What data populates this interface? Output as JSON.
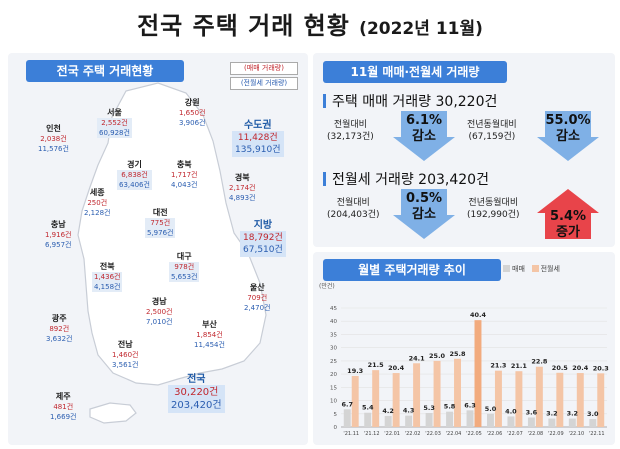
{
  "title": {
    "main": "전국 주택 거래 현황",
    "sub": "(2022년 11월)"
  },
  "left_panel": {
    "header": "전국 주택 거래현황",
    "legend_sale": "(매매 거래량)",
    "legend_rent": "(전월세 거래량)"
  },
  "regions": {
    "incheon": {
      "name": "인천",
      "sale": "2,038건",
      "rent": "11,576건"
    },
    "seoul": {
      "name": "서울",
      "sale": "2,552건",
      "rent": "60,928건"
    },
    "gangwon": {
      "name": "강원",
      "sale": "1,650건",
      "rent": "3,906건"
    },
    "gyeonggi": {
      "name": "경기",
      "sale": "6,838건",
      "rent": "63,406건"
    },
    "chungbuk": {
      "name": "충북",
      "sale": "1,717건",
      "rent": "4,043건"
    },
    "sejong": {
      "name": "세종",
      "sale": "250건",
      "rent": "2,128건"
    },
    "gyeongbuk": {
      "name": "경북",
      "sale": "2,174건",
      "rent": "4,893건"
    },
    "daejeon": {
      "name": "대전",
      "sale": "775건",
      "rent": "5,976건"
    },
    "chungnam": {
      "name": "충남",
      "sale": "1,916건",
      "rent": "6,957건"
    },
    "daegu": {
      "name": "대구",
      "sale": "978건",
      "rent": "5,653건"
    },
    "jeonbuk": {
      "name": "전북",
      "sale": "1,436건",
      "rent": "4,158건"
    },
    "ulsan": {
      "name": "울산",
      "sale": "709건",
      "rent": "2,470건"
    },
    "gyeongnam": {
      "name": "경남",
      "sale": "2,500건",
      "rent": "7,010건"
    },
    "gwangju": {
      "name": "광주",
      "sale": "892건",
      "rent": "3,632건"
    },
    "busan": {
      "name": "부산",
      "sale": "1,854건",
      "rent": "11,454건"
    },
    "jeonnam": {
      "name": "전남",
      "sale": "1,460건",
      "rent": "3,561건"
    },
    "jeju": {
      "name": "제주",
      "sale": "481건",
      "rent": "1,669건"
    }
  },
  "big_regions": {
    "capital": {
      "name": "수도권",
      "sale": "11,428건",
      "rent": "135,910건"
    },
    "local": {
      "name": "지방",
      "sale": "18,792건",
      "rent": "67,510건"
    },
    "national": {
      "name": "전국",
      "sale": "30,220건",
      "rent": "203,420건"
    }
  },
  "summary": {
    "header": "11월 매매·전월세 거래량",
    "sale_title": "주택 매매 거래량 30,220건",
    "sale_mom_label": "전월대비",
    "sale_mom_base": "(32,173건)",
    "sale_mom_value": "6.1%",
    "sale_mom_dir": "감소",
    "sale_yoy_label": "전년동월대비",
    "sale_yoy_base": "(67,159건)",
    "sale_yoy_value": "55.0%",
    "sale_yoy_dir": "감소",
    "rent_title": "전월세 거래량 203,420건",
    "rent_mom_label": "전월대비",
    "rent_mom_base": "(204,403건)",
    "rent_mom_value": "0.5%",
    "rent_mom_dir": "감소",
    "rent_yoy_label": "전년동월대비",
    "rent_yoy_base": "(192,990건)",
    "rent_yoy_value": "5.4%",
    "rent_yoy_dir": "증가",
    "colors": {
      "decrease": "#7fb0e6",
      "increase": "#e8444a"
    }
  },
  "trend": {
    "header": "월별 주택거래량 추이",
    "legend_sale": "매매",
    "legend_rent": "전월세",
    "colors": {
      "sale": "#d4d4d4",
      "rent": "#f4c5a6",
      "rent_peak": "#f2ab7e"
    }
  },
  "chart_data": {
    "type": "bar",
    "ylabel": "(만건)",
    "ylim": [
      0,
      45
    ],
    "yticks": [
      0,
      5,
      10,
      15,
      20,
      25,
      30,
      35,
      40,
      45
    ],
    "categories": [
      "'21.11",
      "'21.12",
      "'22.01",
      "'22.02",
      "'22.03",
      "'22.04",
      "'22.05",
      "'22.06",
      "'22.07",
      "'22.08",
      "'22.09",
      "'22.10",
      "'22.11"
    ],
    "series": [
      {
        "name": "매매",
        "values": [
          6.7,
          5.4,
          4.2,
          4.3,
          5.3,
          5.8,
          6.3,
          5.0,
          4.0,
          3.6,
          3.2,
          3.2,
          3.0
        ]
      },
      {
        "name": "전월세",
        "values": [
          19.3,
          21.5,
          20.4,
          24.1,
          25.0,
          25.8,
          40.4,
          21.3,
          21.1,
          22.8,
          20.5,
          20.4,
          20.3
        ]
      }
    ]
  }
}
